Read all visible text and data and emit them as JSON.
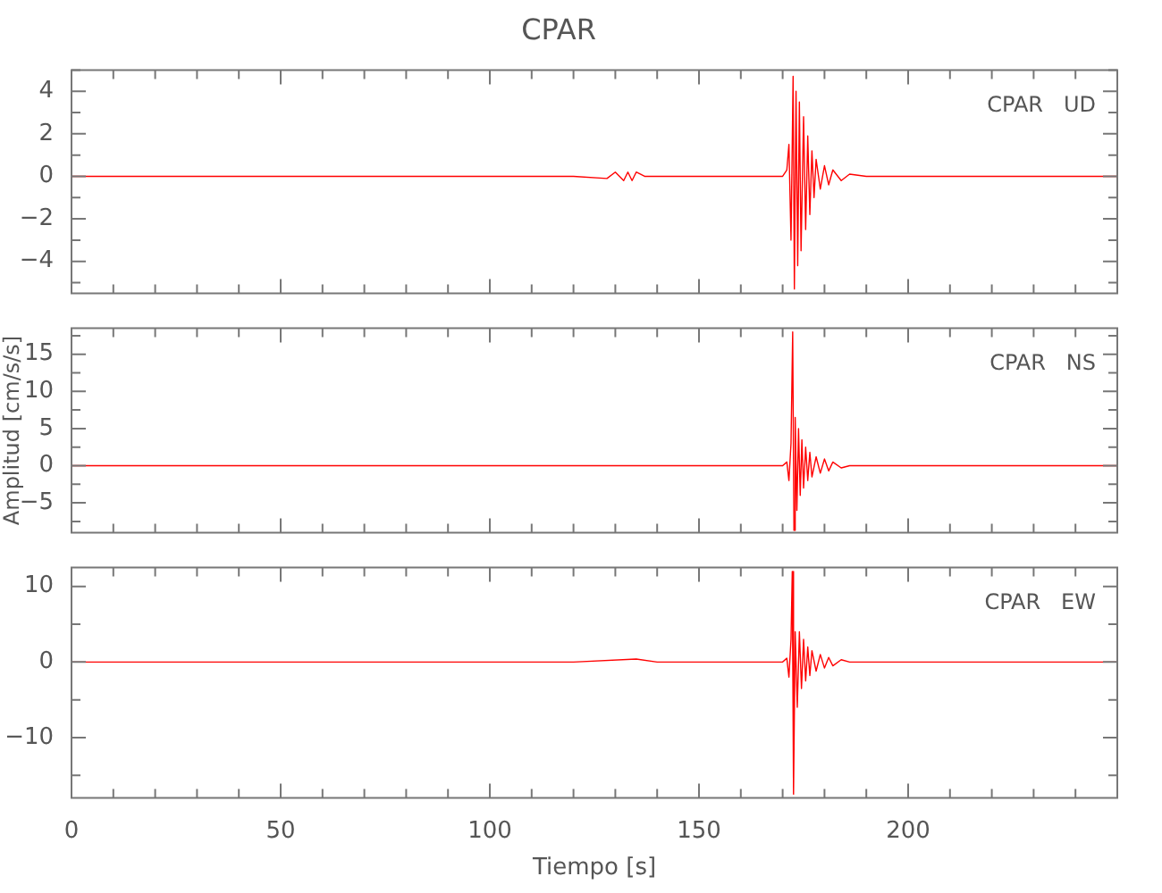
{
  "chart_data": [
    {
      "type": "line",
      "title": "CPAR",
      "annotations": [
        "CPAR   UD"
      ],
      "tick_labels": "y",
      "xlim": [
        0,
        250
      ],
      "xticks": [
        0,
        {
          "value": 10,
          "label": null
        },
        {
          "value": 20,
          "label": null
        },
        {
          "value": 30,
          "label": null
        },
        {
          "value": 40,
          "label": null
        },
        50,
        {
          "value": 60,
          "label": null
        },
        {
          "value": 70,
          "label": null
        },
        {
          "value": 80,
          "label": null
        },
        {
          "value": 90,
          "label": null
        },
        100,
        {
          "value": 110,
          "label": null
        },
        {
          "value": 120,
          "label": null
        },
        {
          "value": 130,
          "label": null
        },
        {
          "value": 140,
          "label": null
        },
        150,
        {
          "value": 160,
          "label": null
        },
        {
          "value": 170,
          "label": null
        },
        {
          "value": 180,
          "label": null
        },
        {
          "value": 190,
          "label": null
        },
        200,
        {
          "value": 210,
          "label": null
        },
        {
          "value": 220,
          "label": null
        },
        {
          "value": 230,
          "label": null
        },
        {
          "value": 240,
          "label": null
        }
      ],
      "ylim": [
        -5.5,
        5
      ],
      "yticks": [
        {
          "value": -5,
          "label": null
        },
        -4,
        {
          "value": -3,
          "label": null
        },
        -2,
        {
          "value": -1,
          "label": null
        },
        0,
        {
          "value": 1,
          "label": null
        },
        2,
        {
          "value": 3,
          "label": null
        },
        4,
        {
          "value": 5,
          "label": null
        }
      ],
      "series": [
        {
          "color": "#ff0000",
          "x": [
            0,
            10,
            20,
            30,
            40,
            50,
            60,
            70,
            80,
            90,
            100,
            110,
            120,
            128,
            130,
            132,
            133,
            134,
            135,
            137,
            140,
            150,
            160,
            170,
            171,
            171.5,
            172,
            172.5,
            172.8,
            173.2,
            173.6,
            174,
            174.4,
            175,
            175.5,
            176,
            176.5,
            177,
            177.5,
            178,
            179,
            180,
            181,
            182,
            184,
            186,
            190,
            200,
            210,
            220,
            230,
            240,
            250
          ],
          "values": [
            0,
            0,
            0,
            0,
            0,
            0,
            0,
            0,
            0,
            0,
            0,
            0,
            0,
            -0.1,
            0.2,
            -0.2,
            0.2,
            -0.2,
            0.2,
            0,
            0,
            0,
            0,
            0,
            0.3,
            1.5,
            -3,
            4.7,
            -5.3,
            4,
            -4.2,
            3.5,
            -3.5,
            2.8,
            -2.5,
            1.9,
            -1.8,
            1.2,
            -1,
            0.8,
            -0.6,
            0.5,
            -0.4,
            0.3,
            -0.2,
            0.1,
            0,
            0,
            0,
            0,
            0,
            0,
            0
          ]
        }
      ]
    },
    {
      "type": "line",
      "ylabel": "Amplitud [cm/s/s]",
      "annotations": [
        "CPAR   NS"
      ],
      "tick_labels": "y",
      "xlim": [
        0,
        250
      ],
      "xticks": [
        0,
        {
          "value": 10,
          "label": null
        },
        {
          "value": 20,
          "label": null
        },
        {
          "value": 30,
          "label": null
        },
        {
          "value": 40,
          "label": null
        },
        50,
        {
          "value": 60,
          "label": null
        },
        {
          "value": 70,
          "label": null
        },
        {
          "value": 80,
          "label": null
        },
        {
          "value": 90,
          "label": null
        },
        100,
        {
          "value": 110,
          "label": null
        },
        {
          "value": 120,
          "label": null
        },
        {
          "value": 130,
          "label": null
        },
        {
          "value": 140,
          "label": null
        },
        150,
        {
          "value": 160,
          "label": null
        },
        {
          "value": 170,
          "label": null
        },
        {
          "value": 180,
          "label": null
        },
        {
          "value": 190,
          "label": null
        },
        200,
        {
          "value": 210,
          "label": null
        },
        {
          "value": 220,
          "label": null
        },
        {
          "value": 230,
          "label": null
        },
        {
          "value": 240,
          "label": null
        }
      ],
      "ylim": [
        -9,
        18.5
      ],
      "yticks": [
        {
          "value": -7.5,
          "label": null
        },
        -5,
        {
          "value": -2.5,
          "label": null
        },
        0,
        {
          "value": 2.5,
          "label": null
        },
        5,
        {
          "value": 7.5,
          "label": null
        },
        10,
        {
          "value": 12.5,
          "label": null
        },
        15,
        {
          "value": 17.5,
          "label": null
        }
      ],
      "series": [
        {
          "color": "#ff0000",
          "x": [
            0,
            20,
            40,
            60,
            80,
            100,
            120,
            140,
            160,
            170,
            171,
            171.5,
            172,
            172.4,
            172.7,
            173,
            173.4,
            173.8,
            174.2,
            174.6,
            175,
            175.5,
            176,
            176.5,
            177,
            178,
            179,
            180,
            181,
            182,
            184,
            186,
            190,
            200,
            220,
            240,
            250
          ],
          "values": [
            0,
            0,
            0,
            0,
            0,
            0,
            0,
            0,
            0,
            0,
            0.5,
            -2,
            3,
            18,
            -8.7,
            6.5,
            -6,
            5,
            -4,
            3.5,
            -3,
            2.5,
            -2,
            1.8,
            -1.5,
            1.2,
            -1,
            0.9,
            -0.7,
            0.5,
            -0.3,
            0,
            0,
            0,
            0,
            0,
            0
          ]
        }
      ]
    },
    {
      "type": "line",
      "xlabel": "Tiempo [s]",
      "annotations": [
        "CPAR   EW"
      ],
      "xlim": [
        0,
        250
      ],
      "xticks": [
        0,
        {
          "value": 10,
          "label": null
        },
        {
          "value": 20,
          "label": null
        },
        {
          "value": 30,
          "label": null
        },
        {
          "value": 40,
          "label": null
        },
        50,
        {
          "value": 60,
          "label": null
        },
        {
          "value": 70,
          "label": null
        },
        {
          "value": 80,
          "label": null
        },
        {
          "value": 90,
          "label": null
        },
        100,
        {
          "value": 110,
          "label": null
        },
        {
          "value": 120,
          "label": null
        },
        {
          "value": 130,
          "label": null
        },
        {
          "value": 140,
          "label": null
        },
        150,
        {
          "value": 160,
          "label": null
        },
        {
          "value": 170,
          "label": null
        },
        {
          "value": 180,
          "label": null
        },
        {
          "value": 190,
          "label": null
        },
        200,
        {
          "value": 210,
          "label": null
        },
        {
          "value": 220,
          "label": null
        },
        {
          "value": 230,
          "label": null
        },
        {
          "value": 240,
          "label": null
        }
      ],
      "ylim": [
        -18,
        12.5
      ],
      "yticks": [
        {
          "value": -15,
          "label": null
        },
        -10,
        {
          "value": -5,
          "label": null
        },
        0,
        {
          "value": 5,
          "label": null
        },
        10
      ],
      "series": [
        {
          "color": "#ff0000",
          "x": [
            0,
            20,
            40,
            60,
            80,
            100,
            120,
            135,
            140,
            160,
            170,
            171,
            171.5,
            172,
            172.3,
            172.6,
            173,
            173.5,
            174,
            174.5,
            175,
            175.5,
            176,
            176.5,
            177,
            178,
            179,
            180,
            181,
            182,
            184,
            186,
            190,
            200,
            220,
            240,
            250
          ],
          "values": [
            0,
            0,
            0,
            0,
            0,
            0,
            0,
            0.4,
            0,
            0,
            0,
            0.5,
            -2,
            3,
            12,
            -17.5,
            4,
            -6,
            4,
            -3.5,
            3,
            -2.5,
            2,
            -1.8,
            1.5,
            -1.2,
            1,
            -0.8,
            0.6,
            -0.5,
            0.3,
            0,
            0,
            0,
            0,
            0,
            0
          ]
        }
      ]
    }
  ]
}
